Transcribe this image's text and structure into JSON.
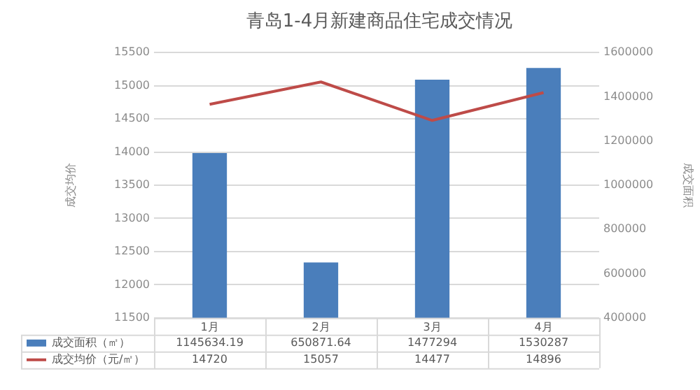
{
  "chart_data": {
    "type": "bar",
    "title": "青岛1-4月新建商品住宅成交情况",
    "ylabel": "成交均价",
    "y2label": "成交面积",
    "categories": [
      "1月",
      "2月",
      "3月",
      "4月"
    ],
    "series": [
      {
        "name": "成交面积（㎡）",
        "axis": "y2",
        "color": "#4a7ebb",
        "values": [
          1145634.19,
          650871.64,
          1477294,
          1530287
        ]
      },
      {
        "name": "成交均价（元/㎡）",
        "type": "line",
        "color": "#be4b48",
        "values": [
          14720,
          15057,
          14477,
          14896
        ]
      }
    ],
    "ylim": [
      11500,
      15500
    ],
    "yticks": [
      11500,
      12000,
      12500,
      13000,
      13500,
      14000,
      14500,
      15000,
      15500
    ],
    "y2lim": [
      400000,
      1600000
    ],
    "y2ticks": [
      400000,
      600000,
      800000,
      1000000,
      1200000,
      1400000,
      1600000
    ],
    "grid": "y",
    "legend": "bottom",
    "data_labels": true,
    "marker": "none"
  }
}
